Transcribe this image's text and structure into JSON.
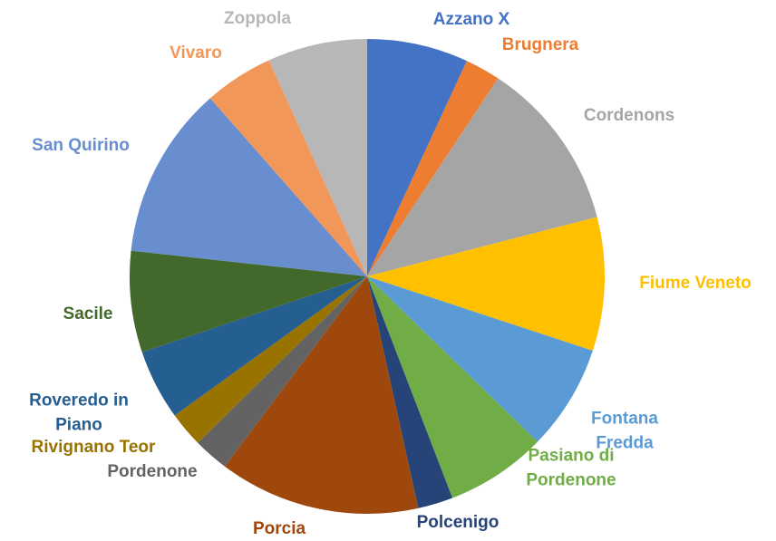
{
  "chart_data": {
    "type": "pie",
    "categories": [
      "Azzano X",
      "Brugnera",
      "Cordenons",
      "Fiume Veneto",
      "Fontana Fredda",
      "Pasiano di Pordenone",
      "Polcenigo",
      "Porcia",
      "Pordenone",
      "Rivignano Teor",
      "Roveredo in Piano",
      "Sacile",
      "San Quirino",
      "Vivaro",
      "Zoppola"
    ],
    "values": [
      6.9,
      2.4,
      11.7,
      9.1,
      7.2,
      6.9,
      2.4,
      13.7,
      2.4,
      2.4,
      4.8,
      6.9,
      11.8,
      4.7,
      6.8
    ],
    "colors": [
      "#4472c4",
      "#ed7d31",
      "#a5a5a5",
      "#ffc000",
      "#5b9bd5",
      "#70ad47",
      "#264478",
      "#9e480e",
      "#636363",
      "#997300",
      "#255e91",
      "#43682b",
      "#698ed0",
      "#f1975a",
      "#b7b7b7"
    ]
  }
}
